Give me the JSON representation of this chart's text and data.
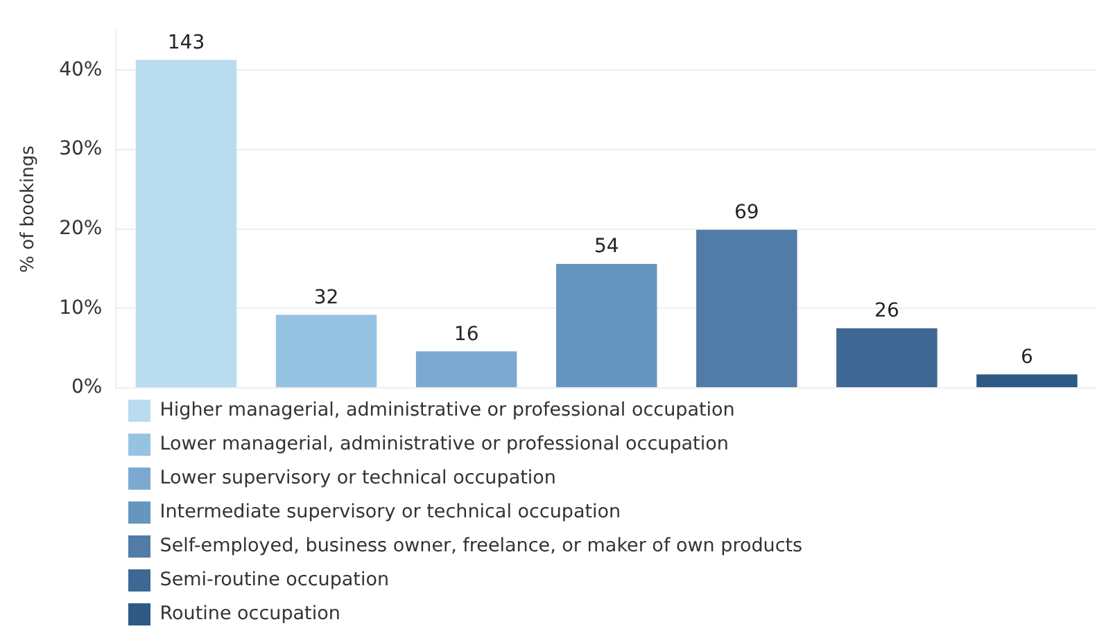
{
  "chart_data": {
    "type": "bar",
    "ylabel": "% of bookings",
    "categories": [
      null,
      null,
      null,
      null,
      null,
      null,
      null
    ],
    "series": [
      {
        "name": "Higher managerial, administrative or professional occupation",
        "color": "#b9dcf0",
        "values": [
          41.3,
          null,
          null,
          null,
          null,
          null,
          null
        ]
      },
      {
        "name": "Lower managerial, administrative or professional occupation",
        "color": "#97c3e2",
        "values": [
          null,
          9.2,
          null,
          null,
          null,
          null,
          null
        ]
      },
      {
        "name": "Lower supervisory or technical occupation",
        "color": "#7ca9d2",
        "values": [
          null,
          null,
          4.6,
          null,
          null,
          null,
          null
        ]
      },
      {
        "name": "Intermediate supervisory or technical occupation",
        "color": "#6496bf",
        "values": [
          null,
          null,
          null,
          15.6,
          null,
          null,
          null
        ]
      },
      {
        "name": "Self-employed, business owner, freelance, or maker of own products",
        "color": "#517ca7",
        "values": [
          null,
          null,
          null,
          null,
          19.9,
          null,
          null
        ]
      },
      {
        "name": "Semi-routine occupation",
        "color": "#3e6893",
        "values": [
          null,
          null,
          null,
          null,
          null,
          7.5,
          null
        ]
      },
      {
        "name": "Routine occupation",
        "color": "#2e5985",
        "values": [
          null,
          null,
          null,
          null,
          null,
          null,
          1.7
        ]
      }
    ],
    "annotations": [
      {
        "text": "143",
        "y": 41.3
      },
      {
        "text": "32",
        "y": 9.2
      },
      {
        "text": "16",
        "y": 4.6
      },
      {
        "text": "54",
        "y": 15.6
      },
      {
        "text": "69",
        "y": 19.9
      },
      {
        "text": "26",
        "y": 7.5
      },
      {
        "text": "6",
        "y": 1.7
      }
    ],
    "ylim": [
      0,
      45
    ],
    "yticks": [
      {
        "value": 0,
        "label": "0%"
      },
      {
        "value": 10,
        "label": "10%"
      },
      {
        "value": 20,
        "label": "20%"
      },
      {
        "value": 30,
        "label": "30%"
      },
      {
        "value": 40,
        "label": "40%"
      }
    ],
    "grid": "y",
    "legend": "bottom",
    "tick_labels": "y"
  }
}
